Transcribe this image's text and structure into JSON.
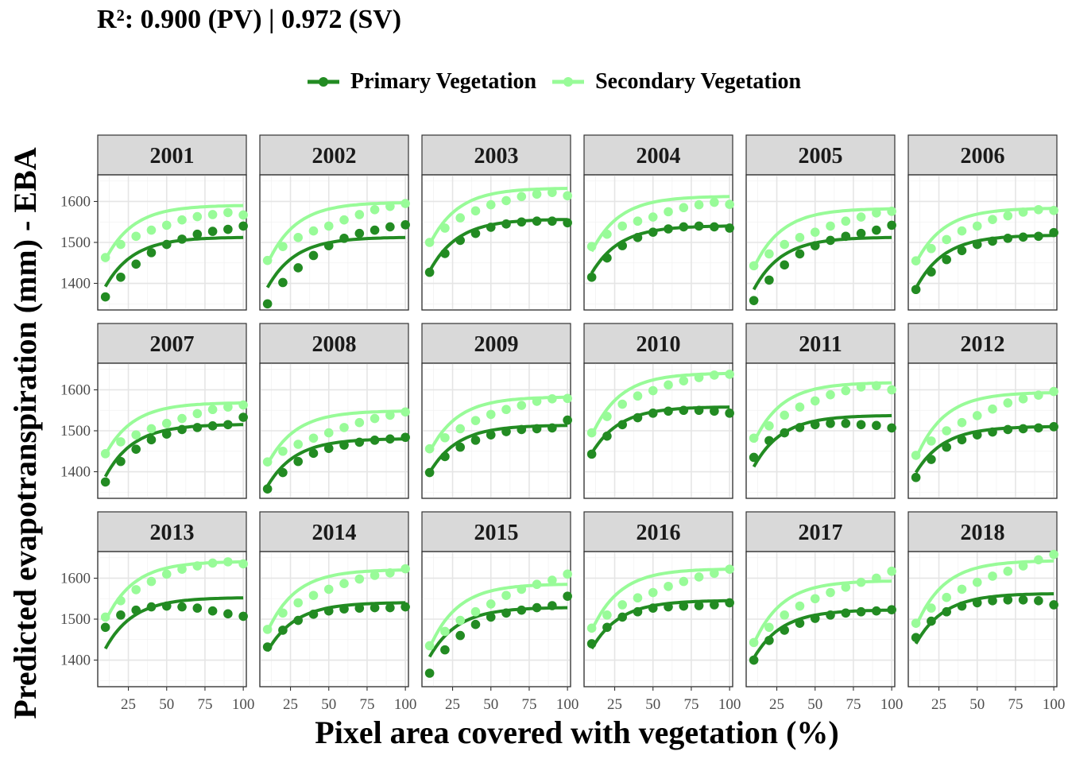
{
  "title": "R²: 0.900 (PV) | 0.972 (SV)",
  "colors": {
    "primary": "#228b22",
    "secondary": "#98fb98"
  },
  "legend": [
    {
      "label": "Primary Vegetation",
      "color": "#228b22"
    },
    {
      "label": "Secondary Vegetation",
      "color": "#98fb98"
    }
  ],
  "chart_data": {
    "type": "scatter",
    "facet_layout": "3 rows x 6 columns",
    "xlabel": "Pixel area covered with vegetation (%)",
    "ylabel": "Predicted evapotranspiration (mm) - EBA",
    "x": [
      10,
      20,
      30,
      40,
      50,
      60,
      70,
      80,
      90,
      100
    ],
    "xticks": [
      25,
      50,
      75,
      100
    ],
    "yticks": [
      1400,
      1500,
      1600
    ],
    "xlim": [
      5,
      102
    ],
    "ylim": [
      1335,
      1665
    ],
    "grid": true,
    "legend_position": "top",
    "series_names": [
      "Primary Vegetation",
      "Secondary Vegetation"
    ],
    "panels": [
      {
        "year": "2001",
        "pv": [
          1367,
          1415,
          1447,
          1475,
          1495,
          1508,
          1520,
          1527,
          1532,
          1540
        ],
        "sv": [
          1463,
          1495,
          1515,
          1530,
          1542,
          1555,
          1563,
          1568,
          1573,
          1567
        ],
        "pv_fit": [
          1392,
          1512
        ],
        "sv_fit": [
          1458,
          1590
        ]
      },
      {
        "year": "2002",
        "pv": [
          1350,
          1402,
          1438,
          1468,
          1492,
          1510,
          1522,
          1530,
          1538,
          1543
        ],
        "sv": [
          1456,
          1490,
          1512,
          1528,
          1540,
          1555,
          1568,
          1580,
          1588,
          1595
        ],
        "pv_fit": [
          1390,
          1512
        ],
        "sv_fit": [
          1448,
          1597
        ]
      },
      {
        "year": "2003",
        "pv": [
          1427,
          1473,
          1505,
          1522,
          1537,
          1545,
          1550,
          1552,
          1552,
          1548
        ],
        "sv": [
          1500,
          1535,
          1560,
          1577,
          1592,
          1602,
          1612,
          1618,
          1622,
          1614
        ],
        "pv_fit": [
          1430,
          1556
        ],
        "sv_fit": [
          1495,
          1632
        ]
      },
      {
        "year": "2004",
        "pv": [
          1415,
          1462,
          1492,
          1512,
          1525,
          1533,
          1538,
          1540,
          1538,
          1535
        ],
        "sv": [
          1490,
          1520,
          1540,
          1552,
          1562,
          1575,
          1585,
          1592,
          1598,
          1593
        ],
        "pv_fit": [
          1425,
          1540
        ],
        "sv_fit": [
          1478,
          1612
        ]
      },
      {
        "year": "2005",
        "pv": [
          1358,
          1408,
          1445,
          1472,
          1492,
          1505,
          1515,
          1522,
          1530,
          1542
        ],
        "sv": [
          1443,
          1472,
          1495,
          1512,
          1525,
          1540,
          1552,
          1562,
          1572,
          1576
        ],
        "pv_fit": [
          1385,
          1512
        ],
        "sv_fit": [
          1438,
          1582
        ]
      },
      {
        "year": "2006",
        "pv": [
          1385,
          1428,
          1458,
          1480,
          1495,
          1503,
          1510,
          1513,
          1515,
          1524
        ],
        "sv": [
          1455,
          1485,
          1507,
          1528,
          1540,
          1556,
          1565,
          1574,
          1580,
          1578
        ],
        "pv_fit": [
          1388,
          1517
        ],
        "sv_fit": [
          1450,
          1583
        ]
      },
      {
        "year": "2007",
        "pv": [
          1375,
          1425,
          1455,
          1478,
          1492,
          1503,
          1508,
          1512,
          1515,
          1533
        ],
        "sv": [
          1444,
          1473,
          1490,
          1505,
          1518,
          1530,
          1542,
          1552,
          1558,
          1563
        ],
        "pv_fit": [
          1388,
          1515
        ],
        "sv_fit": [
          1442,
          1568
        ]
      },
      {
        "year": "2008",
        "pv": [
          1358,
          1398,
          1425,
          1445,
          1457,
          1465,
          1472,
          1477,
          1480,
          1484
        ],
        "sv": [
          1424,
          1450,
          1467,
          1482,
          1495,
          1508,
          1520,
          1530,
          1538,
          1546
        ],
        "pv_fit": [
          1365,
          1480
        ],
        "sv_fit": [
          1418,
          1548
        ]
      },
      {
        "year": "2009",
        "pv": [
          1398,
          1437,
          1460,
          1477,
          1490,
          1498,
          1503,
          1505,
          1507,
          1526
        ],
        "sv": [
          1456,
          1483,
          1505,
          1525,
          1540,
          1552,
          1562,
          1572,
          1578,
          1579
        ],
        "pv_fit": [
          1398,
          1513
        ],
        "sv_fit": [
          1448,
          1582
        ]
      },
      {
        "year": "2010",
        "pv": [
          1443,
          1487,
          1515,
          1532,
          1543,
          1548,
          1550,
          1550,
          1548,
          1543
        ],
        "sv": [
          1495,
          1535,
          1565,
          1585,
          1598,
          1612,
          1622,
          1630,
          1636,
          1638
        ],
        "pv_fit": [
          1445,
          1558
        ],
        "sv_fit": [
          1488,
          1640
        ]
      },
      {
        "year": "2011",
        "pv": [
          1435,
          1476,
          1495,
          1508,
          1515,
          1518,
          1518,
          1515,
          1513,
          1507
        ],
        "sv": [
          1482,
          1512,
          1538,
          1558,
          1573,
          1588,
          1598,
          1607,
          1610,
          1600
        ],
        "pv_fit": [
          1412,
          1537
        ],
        "sv_fit": [
          1472,
          1617
        ]
      },
      {
        "year": "2012",
        "pv": [
          1386,
          1430,
          1460,
          1478,
          1490,
          1497,
          1503,
          1505,
          1507,
          1510
        ],
        "sv": [
          1440,
          1475,
          1500,
          1520,
          1537,
          1553,
          1568,
          1578,
          1587,
          1596
        ],
        "pv_fit": [
          1398,
          1510
        ],
        "sv_fit": [
          1432,
          1593
        ]
      },
      {
        "year": "2013",
        "pv": [
          1480,
          1510,
          1522,
          1530,
          1532,
          1530,
          1527,
          1520,
          1513,
          1507
        ],
        "sv": [
          1505,
          1545,
          1572,
          1592,
          1610,
          1622,
          1630,
          1637,
          1640,
          1635
        ],
        "pv_fit": [
          1428,
          1552
        ],
        "sv_fit": [
          1495,
          1640
        ]
      },
      {
        "year": "2014",
        "pv": [
          1432,
          1473,
          1497,
          1512,
          1520,
          1525,
          1527,
          1528,
          1528,
          1530
        ],
        "sv": [
          1475,
          1515,
          1540,
          1558,
          1573,
          1587,
          1598,
          1607,
          1613,
          1623
        ],
        "pv_fit": [
          1422,
          1540
        ],
        "sv_fit": [
          1470,
          1620
        ]
      },
      {
        "year": "2015",
        "pv": [
          1368,
          1425,
          1460,
          1487,
          1505,
          1515,
          1522,
          1528,
          1533,
          1556
        ],
        "sv": [
          1435,
          1470,
          1497,
          1518,
          1537,
          1558,
          1573,
          1585,
          1595,
          1610
        ],
        "pv_fit": [
          1408,
          1528
        ],
        "sv_fit": [
          1430,
          1585
        ]
      },
      {
        "year": "2016",
        "pv": [
          1440,
          1480,
          1505,
          1518,
          1527,
          1530,
          1532,
          1533,
          1535,
          1540
        ],
        "sv": [
          1478,
          1510,
          1535,
          1552,
          1565,
          1580,
          1592,
          1603,
          1612,
          1622
        ],
        "pv_fit": [
          1428,
          1545
        ],
        "sv_fit": [
          1472,
          1622
        ]
      },
      {
        "year": "2017",
        "pv": [
          1400,
          1448,
          1473,
          1490,
          1502,
          1510,
          1515,
          1518,
          1520,
          1523
        ],
        "sv": [
          1443,
          1480,
          1510,
          1532,
          1550,
          1565,
          1578,
          1590,
          1600,
          1617
        ],
        "pv_fit": [
          1405,
          1522
        ],
        "sv_fit": [
          1440,
          1593
        ]
      },
      {
        "year": "2018",
        "pv": [
          1455,
          1495,
          1518,
          1532,
          1540,
          1545,
          1547,
          1547,
          1545,
          1535
        ],
        "sv": [
          1490,
          1527,
          1553,
          1573,
          1590,
          1605,
          1617,
          1630,
          1645,
          1658
        ],
        "pv_fit": [
          1440,
          1562
        ],
        "sv_fit": [
          1482,
          1642
        ]
      }
    ]
  }
}
